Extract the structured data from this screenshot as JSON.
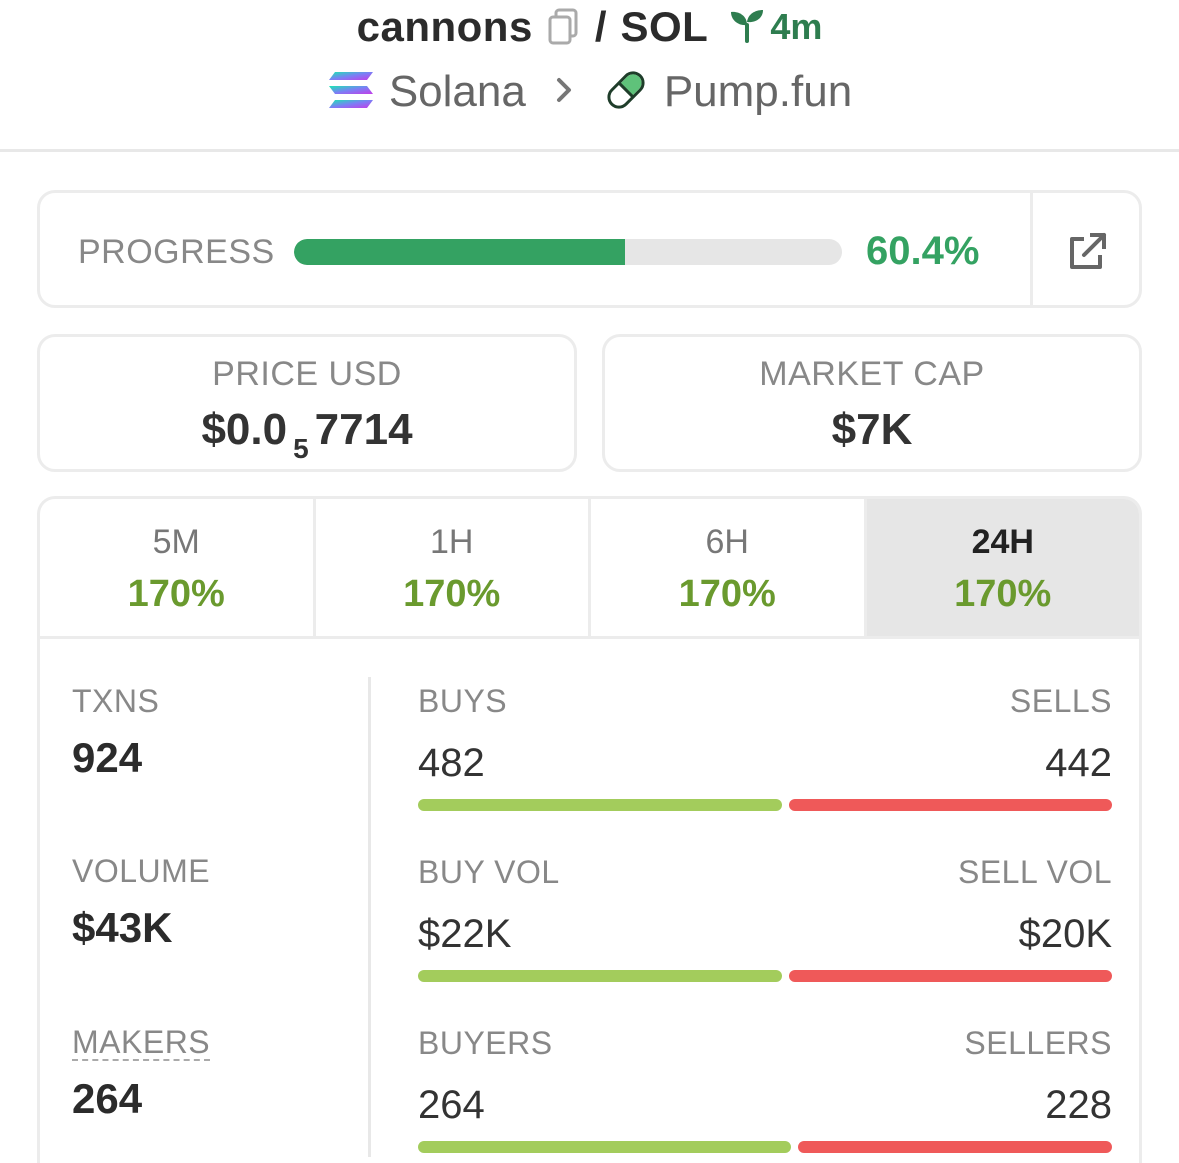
{
  "header": {
    "token_name": "cannons",
    "separator": "/",
    "quote": "SOL",
    "age": "4m",
    "chain": "Solana",
    "dex": "Pump.fun"
  },
  "progress": {
    "label": "PROGRESS",
    "value_text": "60.4%",
    "value": 60.4
  },
  "price": {
    "label": "PRICE USD",
    "prefix": "$0.0",
    "zeros": "5",
    "digits": "7714"
  },
  "market_cap": {
    "label": "MARKET CAP",
    "value": "$7K"
  },
  "timeframes": [
    {
      "label": "5M",
      "change": "170%",
      "active": false
    },
    {
      "label": "1H",
      "change": "170%",
      "active": false
    },
    {
      "label": "6H",
      "change": "170%",
      "active": false
    },
    {
      "label": "24H",
      "change": "170%",
      "active": true
    }
  ],
  "stats": {
    "txns": {
      "label": "TXNS",
      "value": "924"
    },
    "volume": {
      "label": "VOLUME",
      "value": "$43K"
    },
    "makers": {
      "label": "MAKERS",
      "value": "264"
    }
  },
  "split": {
    "txns": {
      "left_label": "BUYS",
      "left_value": "482",
      "right_label": "SELLS",
      "right_value": "442",
      "left_share": 0.525
    },
    "volume": {
      "left_label": "BUY VOL",
      "left_value": "$22K",
      "right_label": "SELL VOL",
      "right_value": "$20K",
      "left_share": 0.525
    },
    "makers": {
      "left_label": "BUYERS",
      "left_value": "264",
      "right_label": "SELLERS",
      "right_value": "228",
      "left_share": 0.537
    }
  },
  "colors": {
    "progress": "#34a262",
    "change_positive": "#6a9a2e",
    "buy_bar": "#a3cc5c",
    "sell_bar": "#ef5959",
    "age": "#2e7d4f"
  },
  "icons": {
    "copy": "copy-icon",
    "age": "sprout-icon",
    "chain": "solana-logo-icon",
    "separator": "chevron-right-icon",
    "dex": "pill-icon",
    "external": "external-link-icon"
  }
}
